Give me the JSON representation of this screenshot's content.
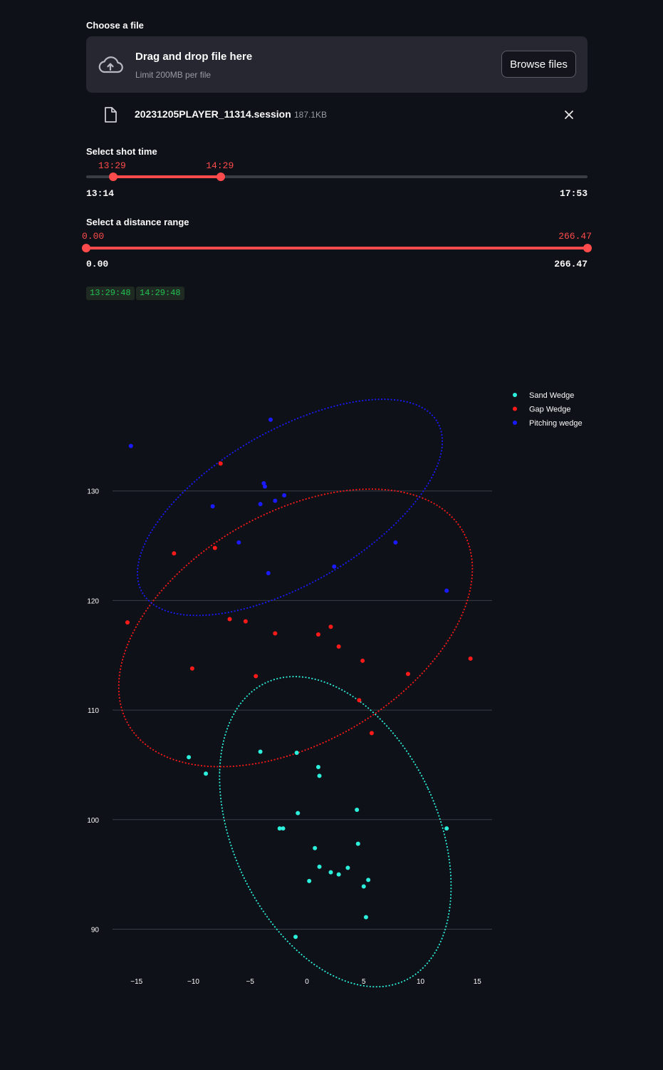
{
  "uploader": {
    "label": "Choose a file",
    "drop_title": "Drag and drop file here",
    "drop_limit": "Limit 200MB per file",
    "browse_label": "Browse files",
    "icon": "cloud-upload-icon"
  },
  "file": {
    "name": "20231205PLAYER_11314.session",
    "size": "187.1KB",
    "icon": "file-icon",
    "remove_icon": "close-icon"
  },
  "time_slider": {
    "label": "Select shot time",
    "min_label": "13:14",
    "max_label": "17:53",
    "low_label": "13:29",
    "high_label": "14:29",
    "min": 794,
    "max": 1073,
    "low": 809,
    "high": 869
  },
  "distance_slider": {
    "label": "Select a distance range",
    "min_label": "0.00",
    "max_label": "266.47",
    "low_label": "0.00",
    "high_label": "266.47",
    "min": 0,
    "max": 266.47,
    "low": 0,
    "high": 266.47
  },
  "badges": [
    "13:29:48",
    "14:29:48"
  ],
  "colors": {
    "accent": "#ff4b4b",
    "badge_text": "#21c354",
    "background": "#0e1117"
  },
  "chart_data": {
    "type": "scatter",
    "title": "",
    "xlabel": "",
    "ylabel": "",
    "xlim": [
      -17,
      17
    ],
    "ylim": [
      86,
      143
    ],
    "xticks": [
      -15,
      -10,
      -5,
      0,
      5,
      10,
      15
    ],
    "xtick_labels": [
      "−15",
      "−10",
      "−5",
      "0",
      "5",
      "10",
      "15"
    ],
    "yticks": [
      90,
      100,
      110,
      120,
      130
    ],
    "ytick_labels": [
      "90",
      "100",
      "110",
      "120",
      "130"
    ],
    "grid": "horizontal",
    "legend_position": "top-right",
    "series": [
      {
        "name": "Sand Wedge",
        "color": "#2cf0dc",
        "points": [
          [
            -10.4,
            105.7
          ],
          [
            -8.9,
            104.2
          ],
          [
            -4.1,
            106.2
          ],
          [
            -0.9,
            106.1
          ],
          [
            1.0,
            104.8
          ],
          [
            1.1,
            104.0
          ],
          [
            -0.8,
            100.6
          ],
          [
            4.4,
            100.9
          ],
          [
            -2.4,
            99.2
          ],
          [
            -2.1,
            99.2
          ],
          [
            12.3,
            99.2
          ],
          [
            0.7,
            97.4
          ],
          [
            4.5,
            97.8
          ],
          [
            1.1,
            95.7
          ],
          [
            2.1,
            95.2
          ],
          [
            2.8,
            95.0
          ],
          [
            3.6,
            95.6
          ],
          [
            0.2,
            94.4
          ],
          [
            5.4,
            94.5
          ],
          [
            5.0,
            93.9
          ],
          [
            5.2,
            91.1
          ],
          [
            -1.0,
            89.3
          ]
        ],
        "ellipse": {
          "cx": 2.5,
          "cy": 98.9,
          "rx": 9.0,
          "ry": 15.0,
          "angle_deg": -25
        }
      },
      {
        "name": "Gap Wedge",
        "color": "#ff1a1a",
        "points": [
          [
            -7.6,
            132.5
          ],
          [
            -11.7,
            124.3
          ],
          [
            -8.1,
            124.8
          ],
          [
            -15.8,
            118.0
          ],
          [
            -6.8,
            118.3
          ],
          [
            -5.4,
            118.1
          ],
          [
            -2.8,
            117.0
          ],
          [
            1.0,
            116.9
          ],
          [
            2.1,
            117.6
          ],
          [
            2.8,
            115.8
          ],
          [
            4.9,
            114.5
          ],
          [
            14.4,
            114.7
          ],
          [
            -10.1,
            113.8
          ],
          [
            -4.5,
            113.1
          ],
          [
            8.9,
            113.3
          ],
          [
            4.6,
            110.9
          ],
          [
            5.7,
            107.9
          ]
        ],
        "ellipse": {
          "cx": -1.0,
          "cy": 117.5,
          "rx": 17.0,
          "ry": 10.5,
          "angle_deg": -30
        }
      },
      {
        "name": "Pitching wedge",
        "color": "#1a1aff",
        "points": [
          [
            -3.2,
            136.5
          ],
          [
            -15.5,
            134.1
          ],
          [
            -3.8,
            130.7
          ],
          [
            -3.7,
            130.4
          ],
          [
            -2.0,
            129.6
          ],
          [
            -2.8,
            129.1
          ],
          [
            -8.3,
            128.6
          ],
          [
            -4.1,
            128.8
          ],
          [
            -6.0,
            125.3
          ],
          [
            7.8,
            125.3
          ],
          [
            2.4,
            123.1
          ],
          [
            -3.4,
            122.5
          ],
          [
            12.3,
            120.9
          ]
        ],
        "ellipse": {
          "cx": -1.5,
          "cy": 128.5,
          "rx": 15.0,
          "ry": 7.0,
          "angle_deg": -30
        }
      }
    ]
  }
}
